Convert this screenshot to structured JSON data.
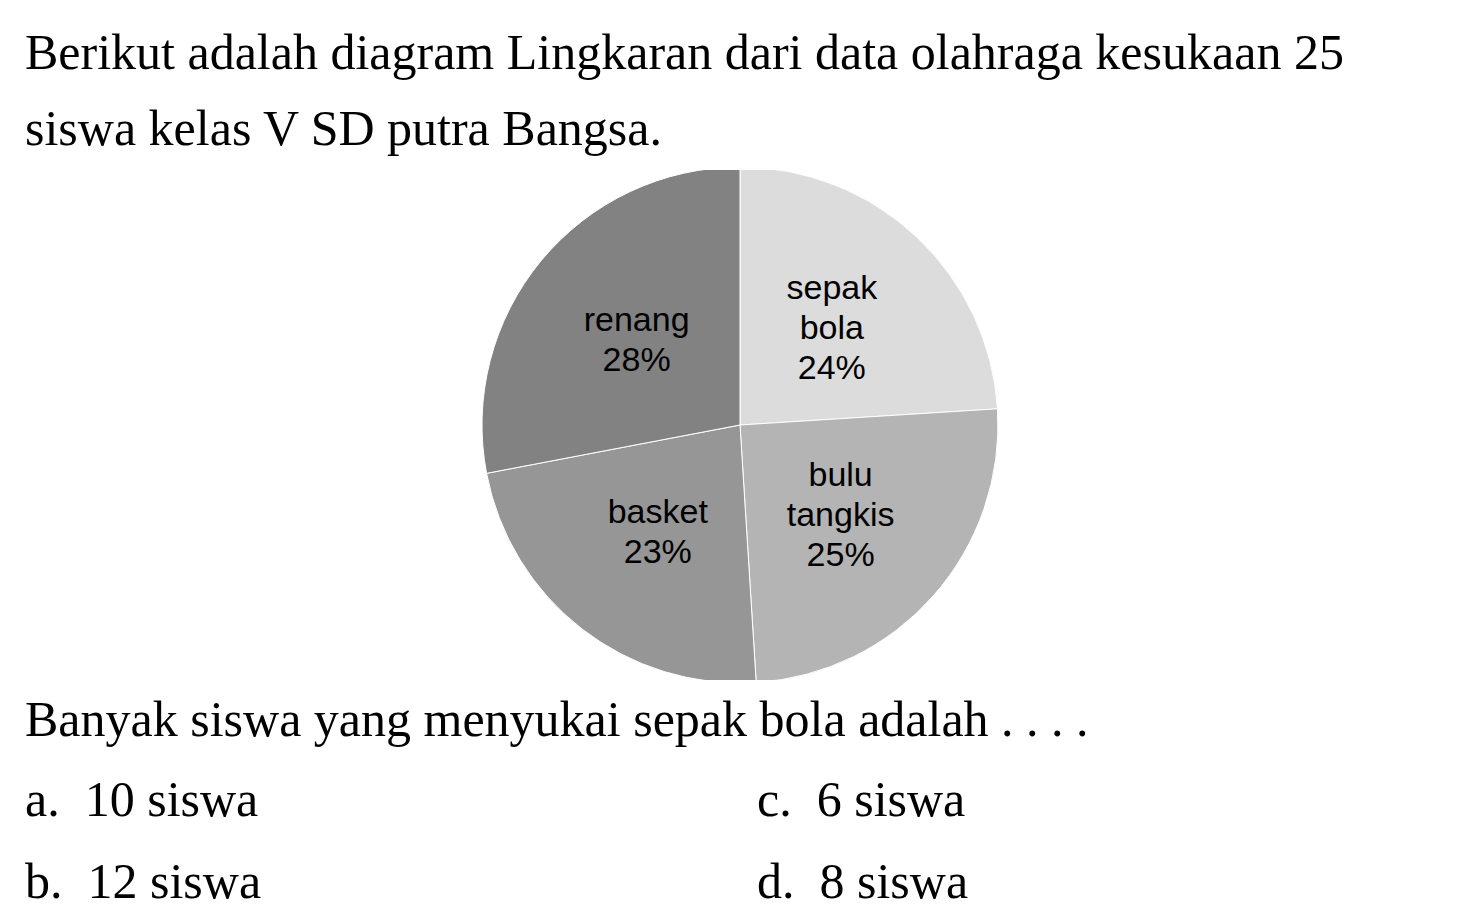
{
  "chart_data": {
    "type": "pie",
    "title": "Berikut adalah diagram Lingkaran dari data olahraga kesukaan 25 siswa kelas V SD putra Bangsa.",
    "categories": [
      "sepak bola",
      "bulu tangkis",
      "basket",
      "renang"
    ],
    "values": [
      24,
      25,
      23,
      28
    ],
    "value_labels": [
      "24%",
      "25%",
      "23%",
      "28%"
    ],
    "data_labels": true,
    "colors": [
      "#dcdcdc",
      "#b4b4b4",
      "#969696",
      "#828282"
    ],
    "annotations": [
      "Banyak siswa yang menyukai sepak bola adalah . . . .",
      "a.  10 siswa",
      "b.  12 siswa",
      "c.  6 siswa",
      "d.  8 siswa"
    ]
  }
}
